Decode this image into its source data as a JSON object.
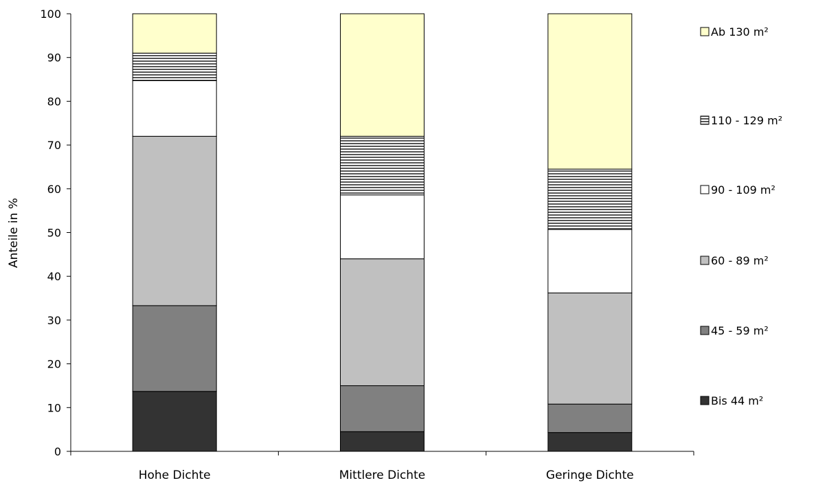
{
  "chart_data": {
    "type": "bar",
    "stacked": true,
    "categories": [
      "Hohe Dichte",
      "Mittlere Dichte",
      "Geringe Dichte"
    ],
    "ylabel": "Anteile in %",
    "xlabel": "",
    "ylim": [
      0,
      100
    ],
    "yticks": [
      0,
      10,
      20,
      30,
      40,
      50,
      60,
      70,
      80,
      90,
      100
    ],
    "grid": false,
    "legend_position": "right",
    "series": [
      {
        "name": "Bis 44 m²",
        "color": "#333333",
        "pattern": "solid",
        "values": [
          13.7,
          4.5,
          4.3
        ]
      },
      {
        "name": "45 - 59 m²",
        "color": "#808080",
        "pattern": "solid",
        "values": [
          19.6,
          10.5,
          6.5
        ]
      },
      {
        "name": "60 - 89 m²",
        "color": "#c0c0c0",
        "pattern": "solid",
        "values": [
          38.7,
          29.0,
          25.4
        ]
      },
      {
        "name": "90 - 109 m²",
        "color": "#ffffff",
        "pattern": "solid",
        "values": [
          12.7,
          14.6,
          14.5
        ]
      },
      {
        "name": "110 - 129 m²",
        "color": "#808080",
        "pattern": "horizontal-stripes",
        "values": [
          6.3,
          13.4,
          13.8
        ]
      },
      {
        "name": "Ab 130 m²",
        "color": "#ffffcc",
        "pattern": "solid",
        "values": [
          9.0,
          28.0,
          35.5
        ]
      }
    ]
  }
}
